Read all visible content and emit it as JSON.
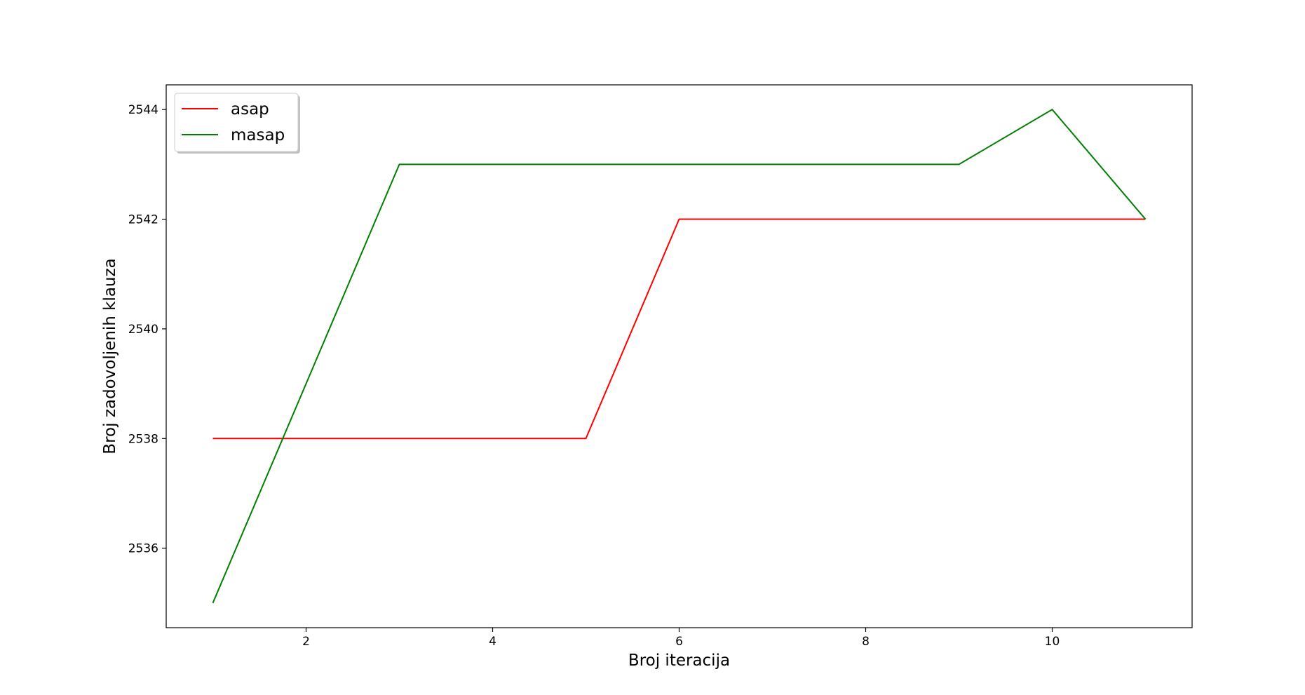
{
  "chart_data": {
    "type": "line",
    "title": "",
    "xlabel": "Broj iteracija",
    "ylabel": "Broj zadovoljenih klauza",
    "xlim": [
      0.5,
      11.5
    ],
    "ylim": [
      2534.55,
      2544.45
    ],
    "xticks": [
      2,
      4,
      6,
      8,
      10
    ],
    "yticks": [
      2536,
      2538,
      2540,
      2542,
      2544
    ],
    "grid": false,
    "legend_position": "top-left",
    "x": [
      1,
      2,
      3,
      4,
      5,
      6,
      7,
      8,
      9,
      10,
      11
    ],
    "series": [
      {
        "name": "asap",
        "color": "#ff0000",
        "values": [
          2538,
          2538,
          2538,
          2538,
          2538,
          2542,
          2542,
          2542,
          2542,
          2542,
          2542
        ]
      },
      {
        "name": "masap",
        "color": "#008000",
        "values": [
          2535,
          2539,
          2543,
          2543,
          2543,
          2543,
          2543,
          2543,
          2543,
          2544,
          2542
        ]
      }
    ]
  }
}
